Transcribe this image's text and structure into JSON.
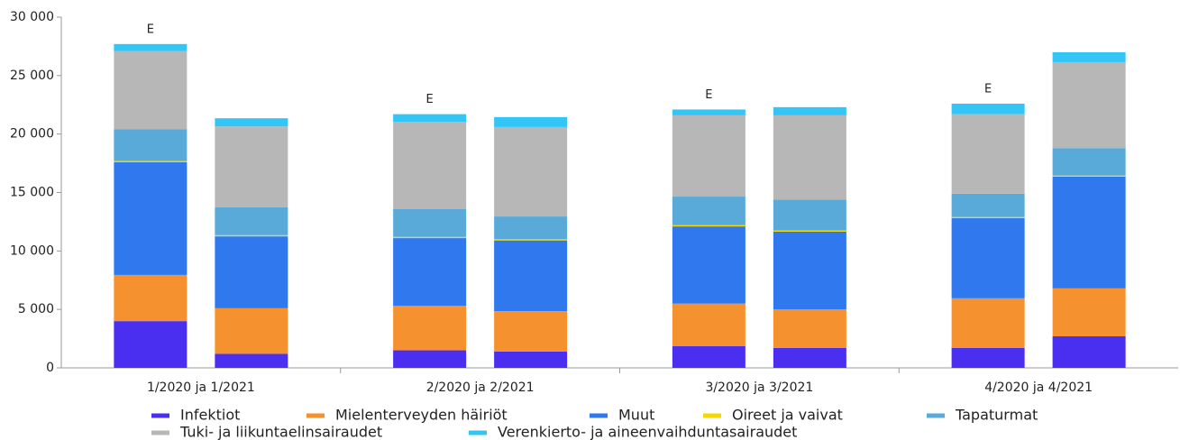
{
  "chart_data": {
    "type": "stacked_bar",
    "groups": [
      "1/2020 ja 1/2021",
      "2/2020 ja 2/2021",
      "3/2020 ja 3/2021",
      "4/2020 ja 4/2021"
    ],
    "bars_per_group": 2,
    "annotations": [
      {
        "text": "E",
        "index": 0
      },
      {
        "text": "E",
        "index": 2
      },
      {
        "text": "E",
        "index": 4
      },
      {
        "text": "E",
        "index": 6
      }
    ],
    "ylim": [
      0,
      30000
    ],
    "yticks": [
      0,
      {
        "value": 5000,
        "label": "5 000"
      },
      {
        "value": 10000,
        "label": "10 000"
      },
      {
        "value": 15000,
        "label": "15 000"
      },
      {
        "value": 20000,
        "label": "20 000"
      },
      {
        "value": 25000,
        "label": "25 000"
      },
      {
        "value": 30000,
        "label": "30 000"
      }
    ],
    "grid": false,
    "legend": "bottom",
    "series": [
      {
        "name": "Infektiot",
        "color": "#4a2ff0",
        "values": [
          4000,
          1200,
          1500,
          1400,
          1850,
          1700,
          1700,
          2700
        ]
      },
      {
        "name": "Mielenterveyden häiriöt",
        "color": "#f5912f",
        "values": [
          3950,
          3900,
          3800,
          3450,
          3650,
          3300,
          4250,
          4100
        ]
      },
      {
        "name": "Muut",
        "color": "#2f78ee",
        "values": [
          9650,
          6150,
          5800,
          6050,
          6600,
          6650,
          6850,
          9550
        ]
      },
      {
        "name": "Oireet ja vaivat",
        "color": "#f5d800",
        "values": [
          100,
          100,
          100,
          100,
          100,
          100,
          100,
          100
        ]
      },
      {
        "name": "Tapaturmat",
        "color": "#5aaad9",
        "values": [
          2700,
          2400,
          2400,
          1950,
          2450,
          2650,
          2000,
          2350
        ]
      },
      {
        "name": "Tuki- ja liikuntaelinsairaudet",
        "color": "#b7b7b7",
        "values": [
          6700,
          6900,
          7450,
          7650,
          6950,
          7200,
          6800,
          7350
        ]
      },
      {
        "name": "Verenkierto- ja aineenvaihduntasairaudet",
        "color": "#33c5f5",
        "values": [
          600,
          700,
          650,
          850,
          500,
          700,
          900,
          850
        ]
      }
    ]
  }
}
